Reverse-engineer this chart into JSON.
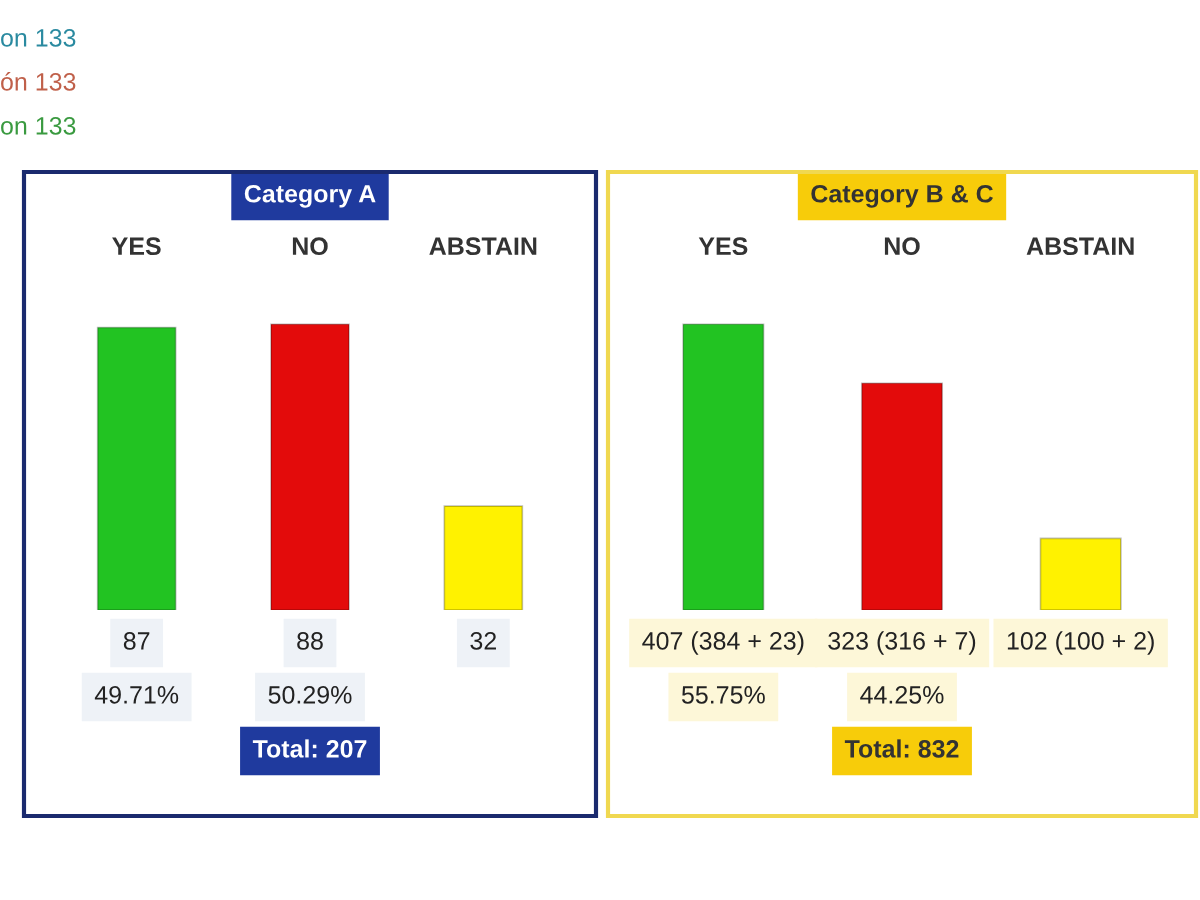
{
  "chart_data": [
    {
      "type": "other",
      "annotations": [
        "on 133",
        "ón 133",
        "on 133"
      ]
    },
    {
      "type": "bar",
      "title": "Category A",
      "categories": [
        "YES",
        "NO",
        "ABSTAIN"
      ],
      "colors": [
        "#22c322",
        "#e30b0b",
        "#fff200"
      ],
      "values": [
        87,
        88,
        32
      ],
      "data_labels": true,
      "annotations": [
        "49.71%",
        "50.29%",
        "Total: 207"
      ]
    },
    {
      "type": "bar",
      "title": "Category B & C",
      "categories": [
        "YES",
        "NO",
        "ABSTAIN"
      ],
      "colors": [
        "#22c322",
        "#e30b0b",
        "#fff200"
      ],
      "values": [
        407,
        323,
        102
      ],
      "value_labels": [
        "407 (384 + 23)",
        "323 (316 + 7)",
        "102 (100 + 2)"
      ],
      "annotations": [
        "55.75%",
        "44.25%",
        "Total: 832"
      ]
    }
  ]
}
